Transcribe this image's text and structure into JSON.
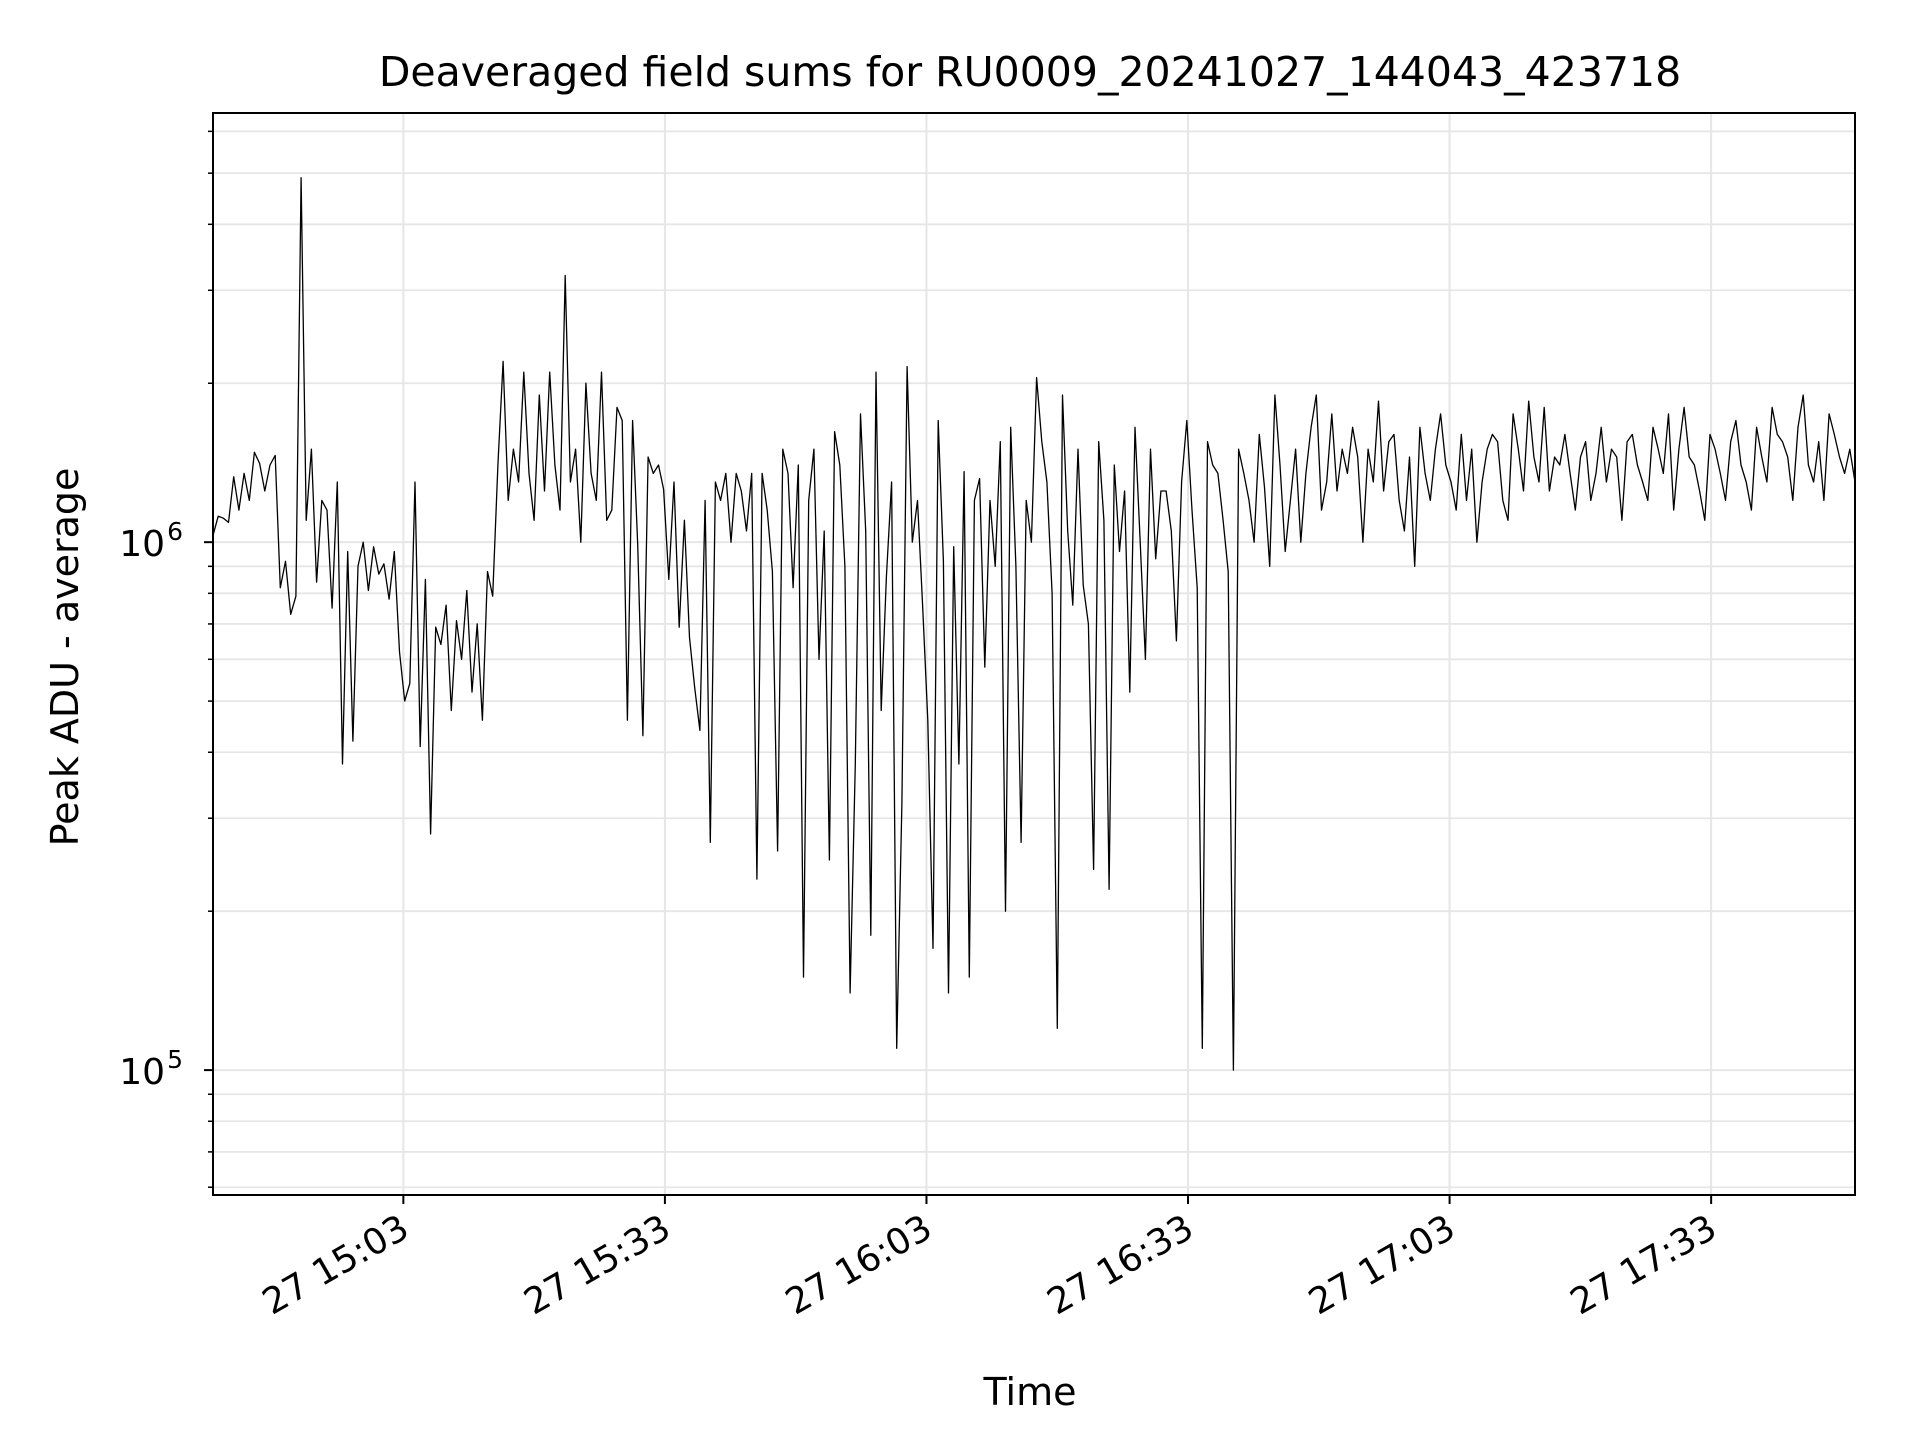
{
  "chart_data": {
    "type": "line",
    "title": "Deaveraged field sums for RU0009_20241027_144043_423718",
    "xlabel": "Time",
    "ylabel": "Peak ADU - average",
    "yscale": "log",
    "ylim": [
      58000,
      6500000
    ],
    "xlim": [
      "2024-10-27 14:41:10",
      "2024-10-27 17:49:30"
    ],
    "x_ticks": [
      {
        "t": "2024-10-27 15:03",
        "label": "27 15:03"
      },
      {
        "t": "2024-10-27 15:33",
        "label": "27 15:33"
      },
      {
        "t": "2024-10-27 16:03",
        "label": "27 16:03"
      },
      {
        "t": "2024-10-27 16:33",
        "label": "27 16:33"
      },
      {
        "t": "2024-10-27 17:03",
        "label": "27 17:03"
      },
      {
        "t": "2024-10-27 17:33",
        "label": "27 17:33"
      }
    ],
    "y_ticks": [
      {
        "v": 100000,
        "base": "10",
        "exp": "5"
      },
      {
        "v": 1000000,
        "base": "10",
        "exp": "6"
      }
    ],
    "grid": true,
    "line_color": "#000000",
    "grid_color": "#e6e6e6",
    "series": [
      {
        "name": "",
        "x_start": "2024-10-27 14:41:10",
        "x_end": "2024-10-27 17:49:30",
        "values": [
          1030000,
          1120000,
          1110000,
          1090000,
          1330000,
          1150000,
          1350000,
          1200000,
          1480000,
          1410000,
          1250000,
          1400000,
          1460000,
          820000,
          920000,
          730000,
          790000,
          4900000,
          1100000,
          1500000,
          840000,
          1200000,
          1150000,
          750000,
          1300000,
          380000,
          960000,
          420000,
          900000,
          1000000,
          810000,
          980000,
          870000,
          910000,
          780000,
          960000,
          620000,
          500000,
          540000,
          1300000,
          410000,
          850000,
          280000,
          690000,
          640000,
          760000,
          480000,
          710000,
          600000,
          810000,
          520000,
          700000,
          460000,
          880000,
          790000,
          1400000,
          2200000,
          1200000,
          1500000,
          1300000,
          2100000,
          1350000,
          1100000,
          1900000,
          1250000,
          2100000,
          1400000,
          1150000,
          3200000,
          1300000,
          1500000,
          1000000,
          2000000,
          1350000,
          1200000,
          2100000,
          1100000,
          1150000,
          1800000,
          1700000,
          460000,
          1700000,
          990000,
          430000,
          1450000,
          1350000,
          1400000,
          1260000,
          850000,
          1300000,
          690000,
          1100000,
          660000,
          530000,
          440000,
          1200000,
          270000,
          1300000,
          1200000,
          1350000,
          1000000,
          1350000,
          1250000,
          1050000,
          1350000,
          230000,
          1350000,
          1150000,
          880000,
          260000,
          1500000,
          1350000,
          820000,
          1400000,
          150000,
          1200000,
          1500000,
          600000,
          1050000,
          250000,
          1620000,
          1400000,
          900000,
          140000,
          380000,
          1750000,
          1050000,
          180000,
          2100000,
          480000,
          860000,
          1300000,
          110000,
          320000,
          2150000,
          1000000,
          1200000,
          760000,
          460000,
          170000,
          1700000,
          920000,
          140000,
          980000,
          380000,
          1360000,
          150000,
          1200000,
          1320000,
          580000,
          1200000,
          900000,
          1550000,
          200000,
          1650000,
          900000,
          270000,
          1200000,
          1000000,
          2050000,
          1550000,
          1300000,
          800000,
          120000,
          1900000,
          1050000,
          760000,
          1500000,
          830000,
          700000,
          240000,
          1550000,
          1100000,
          220000,
          1400000,
          960000,
          1250000,
          520000,
          1650000,
          1000000,
          600000,
          1500000,
          930000,
          1250000,
          1250000,
          1050000,
          650000,
          1300000,
          1700000,
          1150000,
          820000,
          110000,
          1550000,
          1400000,
          1350000,
          1100000,
          880000,
          100000,
          1500000,
          1350000,
          1200000,
          1000000,
          1600000,
          1270000,
          900000,
          1900000,
          1400000,
          960000,
          1200000,
          1500000,
          1000000,
          1350000,
          1650000,
          1900000,
          1150000,
          1300000,
          1750000,
          1250000,
          1500000,
          1350000,
          1650000,
          1450000,
          1000000,
          1500000,
          1300000,
          1850000,
          1250000,
          1550000,
          1600000,
          1200000,
          1050000,
          1450000,
          900000,
          1650000,
          1350000,
          1200000,
          1500000,
          1750000,
          1400000,
          1300000,
          1150000,
          1600000,
          1200000,
          1500000,
          1000000,
          1300000,
          1500000,
          1600000,
          1550000,
          1200000,
          1100000,
          1750000,
          1500000,
          1250000,
          1850000,
          1450000,
          1300000,
          1800000,
          1250000,
          1450000,
          1400000,
          1600000,
          1350000,
          1150000,
          1450000,
          1550000,
          1200000,
          1350000,
          1650000,
          1300000,
          1500000,
          1450000,
          1100000,
          1550000,
          1600000,
          1400000,
          1300000,
          1200000,
          1650000,
          1500000,
          1350000,
          1750000,
          1150000,
          1500000,
          1800000,
          1450000,
          1400000,
          1250000,
          1100000,
          1600000,
          1500000,
          1350000,
          1200000,
          1550000,
          1700000,
          1400000,
          1300000,
          1150000,
          1650000,
          1450000,
          1300000,
          1800000,
          1600000,
          1550000,
          1450000,
          1200000,
          1650000,
          1900000,
          1400000,
          1300000,
          1550000,
          1200000,
          1750000,
          1600000,
          1450000,
          1350000,
          1500000,
          1300000
        ]
      }
    ]
  }
}
